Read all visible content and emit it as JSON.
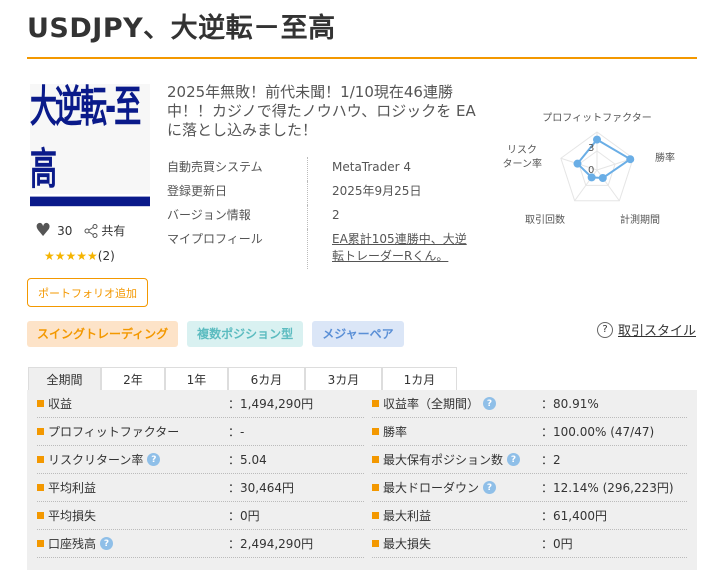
{
  "title": "USDJPY、大逆転－至高",
  "logo_text": "大逆転-至高",
  "likes": "30",
  "share_label": "共有",
  "rating_stars": "★★★★★",
  "rating_count": "(2)",
  "portfolio_button": "ポートフォリオ追加",
  "description": "2025年無敗！前代未聞！1/10現在46連勝中！！カジノで得たノウハウ、ロジックを EAに落とし込みました！",
  "info": [
    {
      "key": "自動売買システム",
      "value": "MetaTrader 4"
    },
    {
      "key": "登録更新日",
      "value": "2025年9月25日"
    },
    {
      "key": "バージョン情報",
      "value": "2"
    },
    {
      "key": "マイプロフィール",
      "value": "EA累計105連勝中、大逆転トレーダーRくん。"
    }
  ],
  "radar": {
    "axes": [
      "プロフィットファクター",
      "勝率",
      "計測期間",
      "取引回数",
      "リスクターン率"
    ],
    "values": [
      4,
      4.6,
      1.3,
      1.2,
      2.7
    ],
    "max": 5,
    "tick_labels": [
      "0",
      "3"
    ],
    "color": "#6aaee6"
  },
  "tags": [
    {
      "label": "スイングトレーディング",
      "bg": "#fde3c8",
      "color": "#f39800"
    },
    {
      "label": "複数ポジション型",
      "bg": "#d9f1f1",
      "color": "#5cbcc0"
    },
    {
      "label": "メジャーペア",
      "bg": "#dbe6f7",
      "color": "#5a8fd6"
    }
  ],
  "style_link": "取引スタイル",
  "tabs": [
    "全期間",
    "2年",
    "1年",
    "6カ月",
    "3カ月",
    "1カ月"
  ],
  "stats_left": [
    {
      "label": "収益",
      "value": "：1,494,290円",
      "help": false
    },
    {
      "label": "プロフィットファクター",
      "value": "：-",
      "help": false
    },
    {
      "label": "リスクリターン率",
      "value": "：5.04",
      "help": true
    },
    {
      "label": "平均利益",
      "value": "：30,464円",
      "help": false
    },
    {
      "label": "平均損失",
      "value": "：0円",
      "help": false
    },
    {
      "label": "口座残高",
      "value": "：2,494,290円",
      "help": true
    }
  ],
  "stats_right": [
    {
      "label": "収益率（全期間）",
      "value": "：80.91%",
      "help": true
    },
    {
      "label": "勝率",
      "value": "：100.00% (47/47)",
      "help": false
    },
    {
      "label": "最大保有ポジション数",
      "value": "：2",
      "help": true
    },
    {
      "label": "最大ドローダウン",
      "value": "：12.14% (296,223円)",
      "help": true
    },
    {
      "label": "最大利益",
      "value": "：61,400円",
      "help": false
    },
    {
      "label": "最大損失",
      "value": "：0円",
      "help": false
    }
  ]
}
